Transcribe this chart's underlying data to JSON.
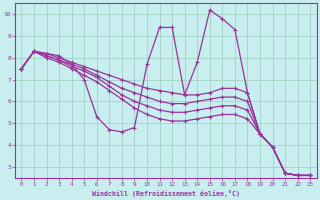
{
  "xlabel": "Windchill (Refroidissement éolien,°C)",
  "background_color": "#c8eef0",
  "line_color": "#993399",
  "grid_color": "#99ccbb",
  "xlim": [
    -0.5,
    23.5
  ],
  "ylim": [
    2.5,
    10.5
  ],
  "yticks": [
    3,
    4,
    5,
    6,
    7,
    8,
    9,
    10
  ],
  "xticks": [
    0,
    1,
    2,
    3,
    4,
    5,
    6,
    7,
    8,
    9,
    10,
    11,
    12,
    13,
    14,
    15,
    16,
    17,
    18,
    19,
    20,
    21,
    22,
    23
  ],
  "lines": [
    {
      "x": [
        0,
        1,
        2,
        3,
        4,
        5,
        6,
        7,
        8,
        9,
        10,
        11,
        12,
        13,
        14,
        15,
        16,
        17,
        18,
        19,
        20,
        21,
        22,
        23
      ],
      "y": [
        7.5,
        8.3,
        8.2,
        8.1,
        7.7,
        7.0,
        5.3,
        4.7,
        4.6,
        4.8,
        7.7,
        9.4,
        9.4,
        6.3,
        7.8,
        10.2,
        9.8,
        9.3,
        6.4,
        4.5,
        3.9,
        2.7,
        2.6,
        2.6
      ]
    },
    {
      "x": [
        0,
        1,
        2,
        3,
        4,
        5,
        6,
        7,
        8,
        9,
        10,
        11,
        12,
        13,
        14,
        15,
        16,
        17,
        18,
        19,
        20,
        21,
        22,
        23
      ],
      "y": [
        7.5,
        8.3,
        8.2,
        8.0,
        7.8,
        7.6,
        7.4,
        7.2,
        7.0,
        6.8,
        6.6,
        6.5,
        6.4,
        6.3,
        6.3,
        6.4,
        6.6,
        6.6,
        6.4,
        4.5,
        3.9,
        2.7,
        2.6,
        2.6
      ]
    },
    {
      "x": [
        0,
        1,
        2,
        3,
        4,
        5,
        6,
        7,
        8,
        9,
        10,
        11,
        12,
        13,
        14,
        15,
        16,
        17,
        18,
        19,
        20,
        21,
        22,
        23
      ],
      "y": [
        7.5,
        8.3,
        8.1,
        7.9,
        7.7,
        7.5,
        7.2,
        6.9,
        6.6,
        6.4,
        6.2,
        6.0,
        5.9,
        5.9,
        6.0,
        6.1,
        6.2,
        6.2,
        6.0,
        4.5,
        3.9,
        2.7,
        2.6,
        2.6
      ]
    },
    {
      "x": [
        0,
        1,
        2,
        3,
        4,
        5,
        6,
        7,
        8,
        9,
        10,
        11,
        12,
        13,
        14,
        15,
        16,
        17,
        18,
        19,
        20,
        21,
        22,
        23
      ],
      "y": [
        7.5,
        8.3,
        8.1,
        7.9,
        7.6,
        7.4,
        7.1,
        6.7,
        6.3,
        6.0,
        5.8,
        5.6,
        5.5,
        5.5,
        5.6,
        5.7,
        5.8,
        5.8,
        5.6,
        4.5,
        3.9,
        2.7,
        2.6,
        2.6
      ]
    },
    {
      "x": [
        0,
        1,
        2,
        3,
        4,
        5,
        6,
        7,
        8,
        9,
        10,
        11,
        12,
        13,
        14,
        15,
        16,
        17,
        18,
        19,
        20,
        21,
        22,
        23
      ],
      "y": [
        7.5,
        8.3,
        8.0,
        7.8,
        7.5,
        7.2,
        6.9,
        6.5,
        6.1,
        5.7,
        5.4,
        5.2,
        5.1,
        5.1,
        5.2,
        5.3,
        5.4,
        5.4,
        5.2,
        4.5,
        3.9,
        2.7,
        2.6,
        2.6
      ]
    }
  ]
}
